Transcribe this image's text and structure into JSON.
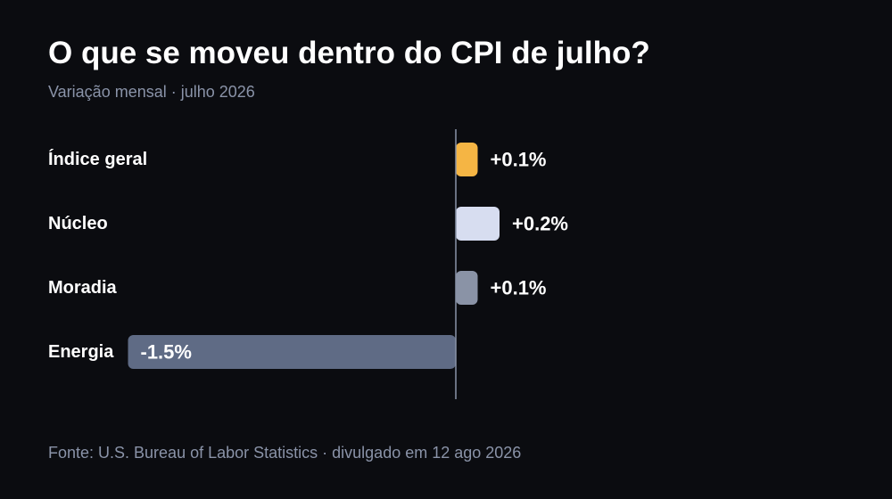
{
  "header": {
    "title": "O que se moveu dentro do CPI de julho?",
    "subtitle": "Variação mensal · julho 2026"
  },
  "footer": {
    "source": "Fonte: U.S. Bureau of Labor Statistics · divulgado em 12 ago 2026"
  },
  "chart_data": {
    "type": "bar",
    "orientation": "horizontal",
    "title": "O que se moveu dentro do CPI de julho?",
    "subtitle": "Variação mensal · julho 2026",
    "xlabel": "",
    "ylabel": "",
    "categories": [
      "Índice geral",
      "Núcleo",
      "Moradia",
      "Energia"
    ],
    "values": [
      0.1,
      0.2,
      0.1,
      -1.5
    ],
    "data_labels": [
      "+0.1%",
      "+0.2%",
      "+0.1%",
      "-1.5%"
    ],
    "bar_colors": [
      "#f5b544",
      "#d7ddf0",
      "#8a93a6",
      "#5f6b85"
    ],
    "xlim": [
      -1.5,
      0.4
    ],
    "grid": false,
    "zero_line": true,
    "zero_line_color": "#8a93a8",
    "label_color": "#ffffff"
  }
}
